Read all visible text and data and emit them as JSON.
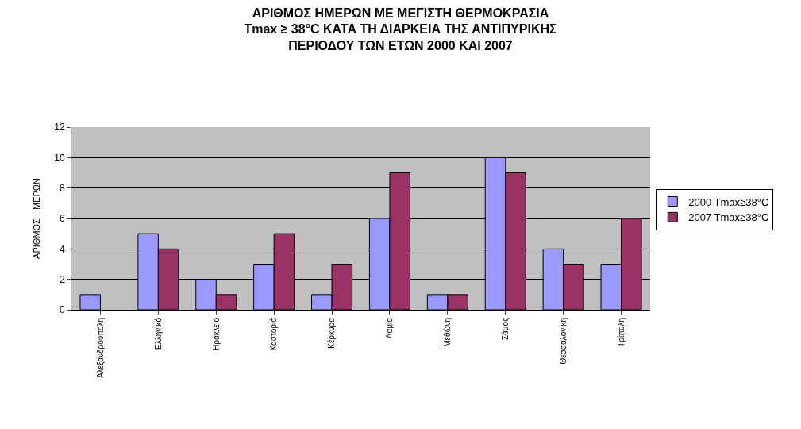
{
  "chart_data": {
    "type": "bar",
    "title": "ΑΡΙΘΜΟΣ ΗΜΕΡΩΝ ΜΕ ΜΕΓΙΣΤΗ ΘΕΡΜΟΚΡΑΣΙΑ\nTmax ≥ 38°C ΚΑΤΑ ΤΗ ΔΙΑΡΚΕΙΑ ΤΗΣ ΑΝΤΙΠΥΡΙΚΗΣ\nΠΕΡΙΟΔΟΥ ΤΩΝ ΕΤΩΝ 2000 ΚΑΙ 2007",
    "ylabel": "ΑΡΙΘΜΟΣ ΗΜΕΡΩΝ",
    "categories": [
      "Αλεξανδρούπολη",
      "Ελληνικό",
      "Ηράκλειο",
      "Καστοριά",
      "Κέρκυρα",
      "Λαμία",
      "Μεθώνη",
      "Σάμος",
      "Θεσσαλονίκη",
      "Τρίπολη"
    ],
    "series": [
      {
        "name": "2000 Tmax≥38°C",
        "color": "#9999ff",
        "values": [
          1,
          5,
          2,
          3,
          1,
          6,
          1,
          10,
          4,
          3
        ]
      },
      {
        "name": "2007 Tmax≥38°C",
        "color": "#993366",
        "values": [
          null,
          4,
          1,
          5,
          3,
          9,
          1,
          9,
          3,
          6
        ]
      }
    ],
    "ylim": [
      0,
      12
    ],
    "yticks": [
      0,
      2,
      4,
      6,
      8,
      10,
      12
    ],
    "grid": "y",
    "legend": "right"
  }
}
